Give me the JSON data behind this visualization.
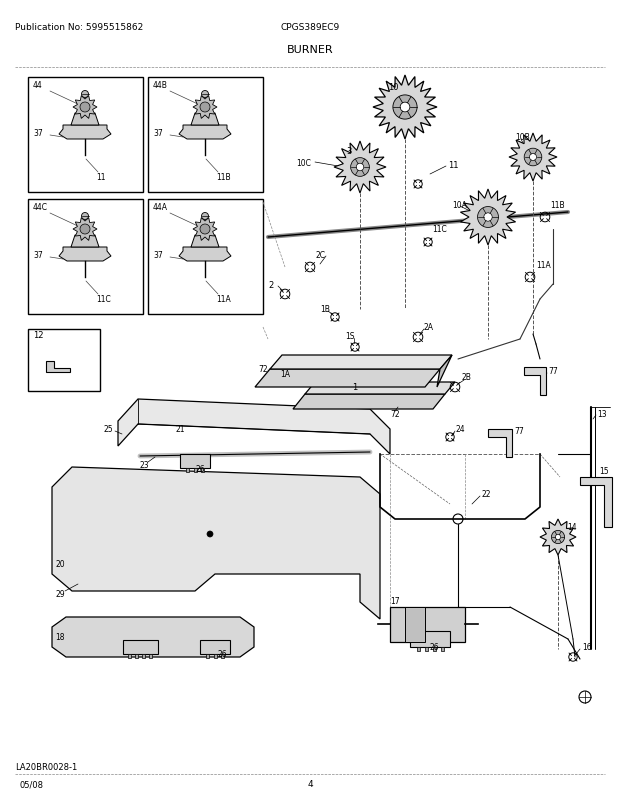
{
  "title_center": "BURNER",
  "pub_no": "Publication No: 5995515862",
  "model": "CPGS389EC9",
  "footer_left": "05/08",
  "footer_center": "4",
  "diagram_label": "LA20BR0028-1",
  "bg_color": "#ffffff",
  "text_color": "#000000",
  "fig_width": 6.2,
  "fig_height": 8.03,
  "dpi": 100
}
